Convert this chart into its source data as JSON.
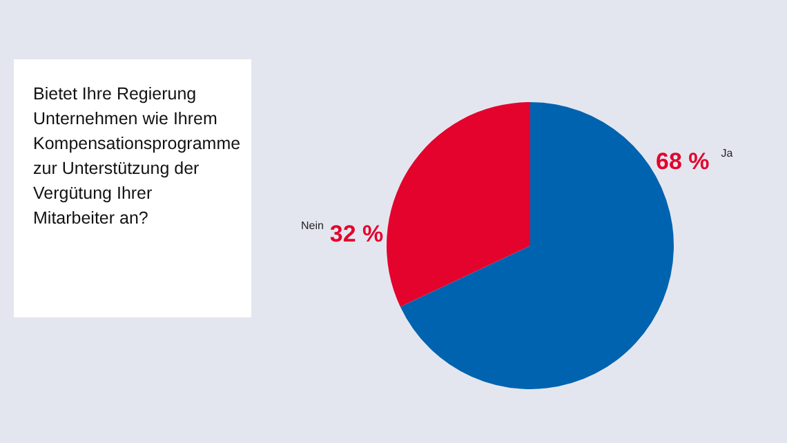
{
  "chart_data": {
    "type": "pie",
    "title": "Bietet Ihre Regierung Unternehmen wie Ihrem Kompensationsprogramme zur Unterstützung der Vergütung Ihrer Mitarbeiter an?",
    "categories": [
      "Ja",
      "Nein"
    ],
    "values": [
      68,
      32
    ],
    "colors": [
      "#0063af",
      "#e3032d"
    ],
    "value_labels": [
      "68 %",
      "32 %"
    ]
  }
}
